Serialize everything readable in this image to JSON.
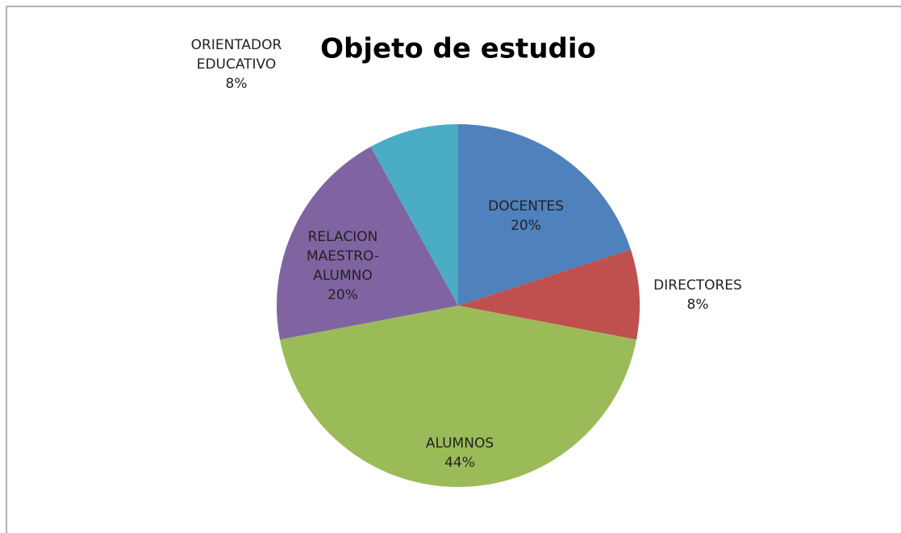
{
  "chart_data": {
    "type": "pie",
    "title": "Objeto de estudio",
    "categories": [
      "DOCENTES",
      "DIRECTORES",
      "ALUMNOS",
      "RELACION MAESTRO-ALUMNO",
      "ORIENTADOR EDUCATIVO"
    ],
    "values": [
      20,
      8,
      44,
      20,
      8
    ],
    "value_labels": [
      "20%",
      "8%",
      "44%",
      "20%",
      "8%"
    ],
    "colors": [
      "#4f81bd",
      "#c0504d",
      "#9bbb59",
      "#8064a2",
      "#4bacc6"
    ]
  }
}
